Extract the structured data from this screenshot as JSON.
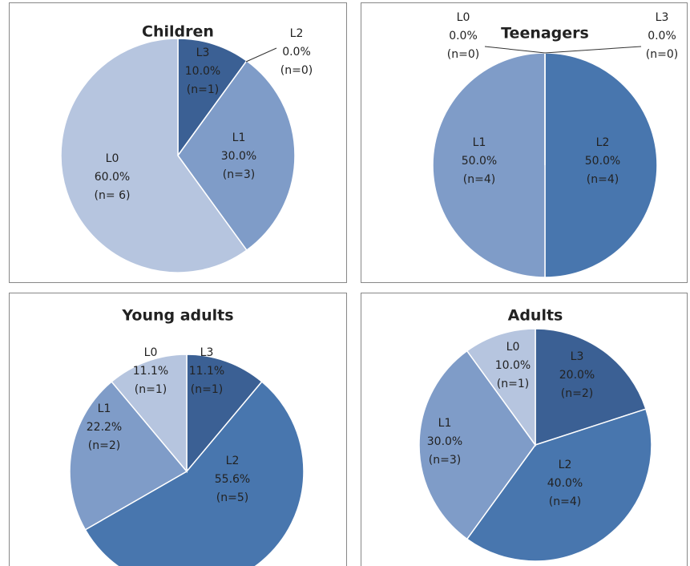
{
  "chart_data": [
    {
      "type": "pie",
      "title": "Children",
      "categories": [
        "L3",
        "L2",
        "L1",
        "L0"
      ],
      "values": [
        10,
        0,
        30,
        60
      ],
      "value_labels": [
        "10.0%",
        "0.0%",
        "30.0%",
        "60.0%"
      ],
      "n_labels": [
        "(n=1)",
        "(n=0)",
        "(n=3)",
        "(n= 6)"
      ],
      "colors": [
        "#3b6094",
        "#4876ae",
        "#7f9cc8",
        "#b6c5df"
      ]
    },
    {
      "type": "pie",
      "title": "Teenagers",
      "categories": [
        "L3",
        "L2",
        "L1",
        "L0"
      ],
      "values": [
        0,
        50,
        50,
        0
      ],
      "value_labels": [
        "0.0%",
        "50.0%",
        "50.0%",
        "0.0%"
      ],
      "n_labels": [
        "(n=0)",
        "(n=4)",
        "(n=4)",
        "(n=0)"
      ],
      "colors": [
        "#3b6094",
        "#4876ae",
        "#7f9cc8",
        "#b6c5df"
      ]
    },
    {
      "type": "pie",
      "title": "Young adults",
      "categories": [
        "L3",
        "L2",
        "L1",
        "L0"
      ],
      "values": [
        11.1,
        55.6,
        22.2,
        11.1
      ],
      "value_labels": [
        "11.1%",
        "55.6%",
        "22.2%",
        "11.1%"
      ],
      "n_labels": [
        "(n=1)",
        "(n=5)",
        "(n=2)",
        "(n=1)"
      ],
      "colors": [
        "#3b6094",
        "#4876ae",
        "#7f9cc8",
        "#b6c5df"
      ]
    },
    {
      "type": "pie",
      "title": "Adults",
      "categories": [
        "L3",
        "L2",
        "L1",
        "L0"
      ],
      "values": [
        20,
        40,
        30,
        10
      ],
      "value_labels": [
        "20.0%",
        "40.0%",
        "30.0%",
        "10.0%"
      ],
      "n_labels": [
        "(n=2)",
        "(n=4)",
        "(n=3)",
        "(n=1)"
      ],
      "colors": [
        "#3b6094",
        "#4876ae",
        "#7f9cc8",
        "#b6c5df"
      ]
    }
  ]
}
